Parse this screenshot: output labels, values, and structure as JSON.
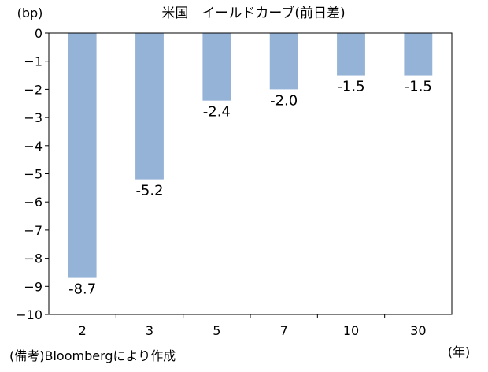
{
  "chart_data": {
    "type": "bar",
    "title": "米国　イールドカーブ(前日差)",
    "ylabel": "(bp)",
    "xlabel": "(年)",
    "categories": [
      "2",
      "3",
      "5",
      "7",
      "10",
      "30"
    ],
    "values": [
      -8.7,
      -5.2,
      -2.4,
      -2.0,
      -1.5,
      -1.5
    ],
    "data_labels": [
      "-8.7",
      "-5.2",
      "-2.4",
      "-2.0",
      "-1.5",
      "-1.5"
    ],
    "ylim": [
      -10,
      0
    ],
    "yticks": [
      0,
      -1,
      -2,
      -3,
      -4,
      -5,
      -6,
      -7,
      -8,
      -9,
      -10
    ],
    "ytick_labels": [
      "0",
      "−1",
      "−2",
      "−3",
      "−4",
      "−5",
      "−6",
      "−7",
      "−8",
      "−9",
      "−10"
    ],
    "grid": false,
    "bar_color": "#95b3d7"
  },
  "source_note": "(備考)Bloombergにより作成"
}
